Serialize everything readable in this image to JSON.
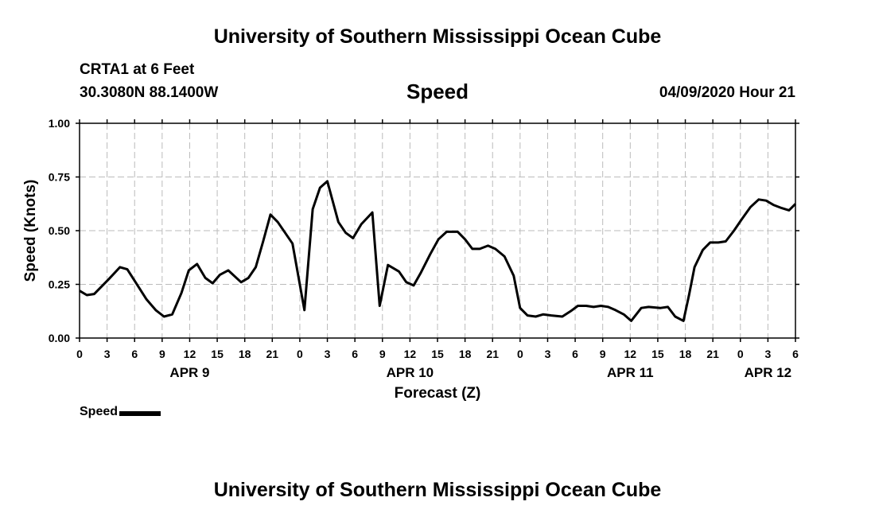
{
  "header": {
    "title_top": "University of Southern Mississippi Ocean Cube",
    "title_bottom": "University of Southern Mississippi Ocean Cube",
    "station": "CRTA1 at 6 Feet",
    "location": "30.3080N 88.1400W",
    "variable": "Speed",
    "timestamp": "04/09/2020 Hour 21"
  },
  "legend": {
    "label": "Speed"
  },
  "chart_data": {
    "type": "line",
    "title": "Speed",
    "xlabel": "Forecast (Z)",
    "ylabel": "Speed (Knots)",
    "ylim": [
      0,
      1
    ],
    "xlim": [
      0,
      78
    ],
    "grid": true,
    "line_color": "#000000",
    "yticks": [
      0,
      0.25,
      0.5,
      0.75,
      1.0
    ],
    "ytick_labels": [
      "0.00",
      "0.25",
      "0.50",
      "0.75",
      "1.00"
    ],
    "xticks": [
      0,
      3,
      6,
      9,
      12,
      15,
      18,
      21,
      24,
      27,
      30,
      33,
      36,
      39,
      42,
      45,
      48,
      51,
      54,
      57,
      60,
      63,
      66,
      69,
      72,
      75,
      78
    ],
    "xtick_labels": [
      "0",
      "3",
      "6",
      "9",
      "12",
      "15",
      "18",
      "21",
      "0",
      "3",
      "6",
      "9",
      "12",
      "15",
      "18",
      "21",
      "0",
      "3",
      "6",
      "9",
      "12",
      "15",
      "18",
      "21",
      "0",
      "3",
      "6"
    ],
    "date_labels": [
      {
        "text": "APR 9",
        "x": 12
      },
      {
        "text": "APR 10",
        "x": 36
      },
      {
        "text": "APR 11",
        "x": 60
      },
      {
        "text": "APR 12",
        "x": 75
      }
    ],
    "series": [
      {
        "name": "Speed",
        "x": [
          0,
          0.8,
          1.6,
          2.4,
          3.2,
          4.4,
          5.2,
          6.1,
          7.3,
          8.3,
          9.2,
          10.1,
          11.1,
          11.9,
          12.8,
          13.7,
          14.5,
          15.3,
          16.2,
          17.6,
          18.4,
          19.2,
          20.0,
          20.8,
          21.6,
          23.2,
          24.5,
          25.4,
          26.2,
          27.0,
          28.2,
          29.0,
          29.8,
          30.7,
          31.9,
          32.7,
          33.6,
          34.8,
          35.6,
          36.4,
          37.2,
          38.2,
          39.1,
          40.0,
          41.2,
          42.0,
          42.8,
          43.6,
          44.5,
          45.3,
          46.3,
          47.3,
          48.0,
          48.8,
          49.7,
          50.5,
          51.4,
          52.6,
          53.5,
          54.3,
          55.2,
          56.0,
          56.8,
          57.6,
          58.4,
          59.3,
          60.1,
          61.2,
          62.0,
          63.3,
          64.1,
          64.9,
          65.8,
          66.4,
          67.0,
          67.9,
          68.7,
          69.6,
          70.4,
          71.3,
          72.1,
          73.1,
          74.0,
          74.8,
          75.6,
          76.5,
          77.3,
          78.0
        ],
        "values": [
          0.22,
          0.2,
          0.205,
          0.24,
          0.275,
          0.33,
          0.32,
          0.26,
          0.18,
          0.13,
          0.1,
          0.11,
          0.21,
          0.315,
          0.345,
          0.28,
          0.255,
          0.295,
          0.315,
          0.26,
          0.28,
          0.33,
          0.45,
          0.575,
          0.54,
          0.44,
          0.13,
          0.6,
          0.7,
          0.73,
          0.54,
          0.49,
          0.465,
          0.53,
          0.585,
          0.15,
          0.34,
          0.31,
          0.26,
          0.245,
          0.305,
          0.39,
          0.46,
          0.495,
          0.495,
          0.46,
          0.415,
          0.415,
          0.43,
          0.415,
          0.38,
          0.29,
          0.14,
          0.105,
          0.1,
          0.11,
          0.105,
          0.1,
          0.125,
          0.15,
          0.15,
          0.145,
          0.15,
          0.145,
          0.13,
          0.11,
          0.08,
          0.14,
          0.145,
          0.14,
          0.145,
          0.1,
          0.08,
          0.2,
          0.33,
          0.41,
          0.445,
          0.445,
          0.45,
          0.5,
          0.55,
          0.61,
          0.645,
          0.64,
          0.62,
          0.605,
          0.595,
          0.625
        ]
      }
    ]
  }
}
